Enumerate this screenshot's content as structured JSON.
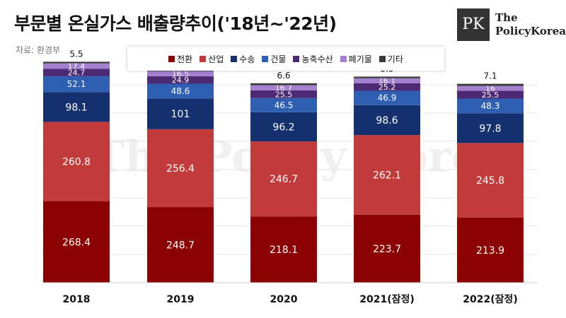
{
  "header": {
    "title": "부문별 온실가스 배출량추이('18년~'22년)",
    "source": "자료: 환경부",
    "logo_text_1": "The",
    "logo_text_2": "PolicyKorea",
    "logo_mark": "PK",
    "watermark": "The Policy Korea"
  },
  "colors": {
    "전환": "#8b0000",
    "산업": "#c23b3b",
    "수송": "#14306e",
    "건물": "#2f5fb3",
    "농축수산": "#4b2a73",
    "폐기물": "#a57fd0",
    "기타": "#3b3b3b"
  },
  "chart_data": {
    "type": "bar",
    "stacked": true,
    "categories": [
      "2018",
      "2019",
      "2020",
      "2021(잠정)",
      "2022(잠정)"
    ],
    "series": [
      {
        "name": "전환",
        "values": [
          268.4,
          248.7,
          218.1,
          223.7,
          213.9
        ]
      },
      {
        "name": "산업",
        "values": [
          260.8,
          256.4,
          246.7,
          262.1,
          245.8
        ]
      },
      {
        "name": "수송",
        "values": [
          98.1,
          101,
          96.2,
          98.6,
          97.8
        ]
      },
      {
        "name": "건물",
        "values": [
          52.1,
          48.6,
          46.5,
          46.9,
          48.3
        ]
      },
      {
        "name": "농축수산",
        "values": [
          24.7,
          24.9,
          25.5,
          25.2,
          25.5
        ]
      },
      {
        "name": "폐기물",
        "values": [
          17.4,
          16.5,
          16.7,
          16.1,
          16
        ]
      },
      {
        "name": "기타",
        "values": [
          5.5,
          5,
          6.6,
          5.5,
          7.1
        ]
      }
    ],
    "title": "부문별 온실가스 배출량추이('18년~'22년)",
    "ylim": [
      0,
      750
    ],
    "grid": true,
    "legend": "top"
  }
}
